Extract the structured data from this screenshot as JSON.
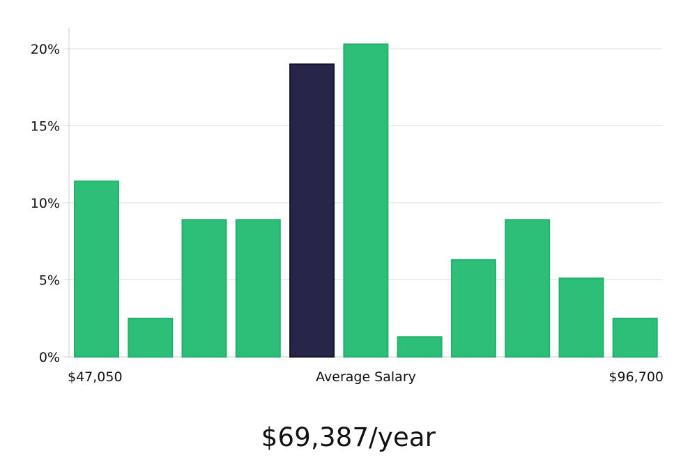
{
  "chart_data": {
    "type": "bar",
    "values": [
      11.4,
      2.5,
      8.9,
      8.9,
      19.0,
      20.3,
      1.3,
      6.3,
      8.9,
      5.1,
      2.5
    ],
    "highlight_index": 4,
    "y_ticks": [
      "0%",
      "5%",
      "10%",
      "15%",
      "20%"
    ],
    "ylim": [
      0,
      21.4
    ],
    "grid": true,
    "x_labels": {
      "min": "$47,050",
      "center": "Average Salary",
      "max": "$96,700"
    },
    "colors": {
      "bar": "#2bbf78",
      "bar_edge": "#22b06d",
      "highlight": "#28254a",
      "highlight_edge": "#15132e",
      "grid": "#dddddd",
      "axis": "#cccccc"
    }
  },
  "summary": {
    "average_salary": "$69,387/year"
  }
}
